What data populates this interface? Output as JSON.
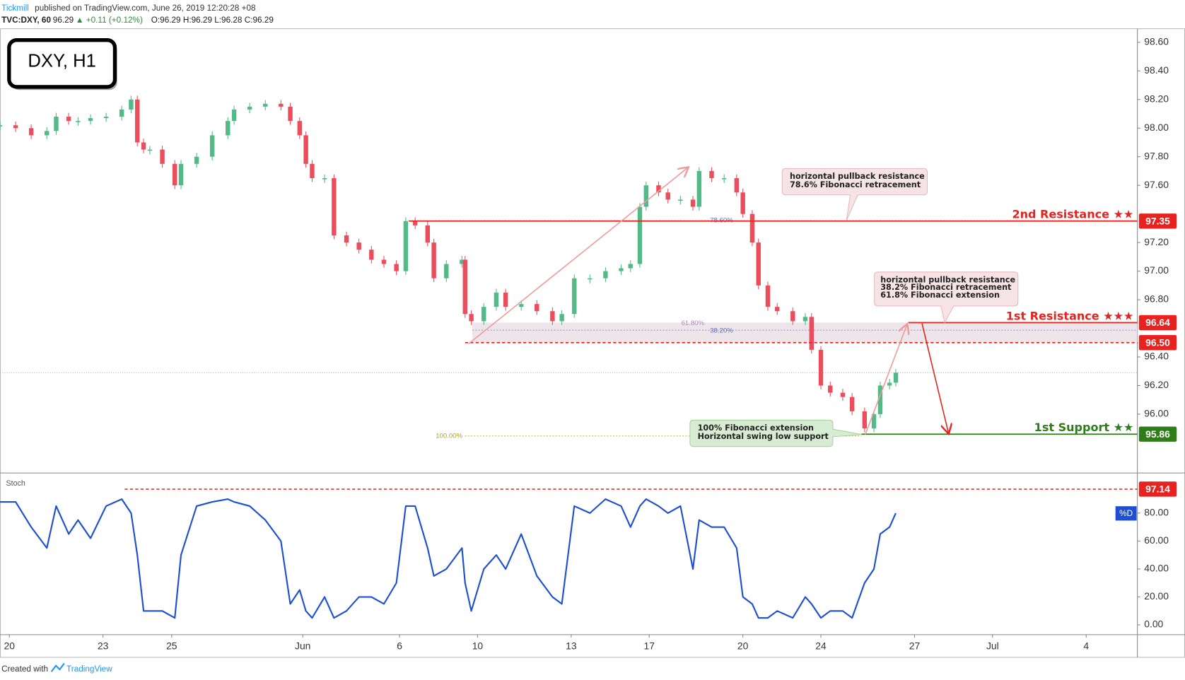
{
  "chart_data": {
    "type": "candlestick",
    "title": "DXY, H1",
    "header": {
      "publisher": "Tickmill",
      "published": "published on TradingView.com, June 26, 2019 12:20:28 +08",
      "symbol": "TVC:DXY, 60",
      "last": 96.29,
      "change": "▲ +0.11 (+0.12%)",
      "ohlc": "O:96.29 H:96.29 L:96.28 C:96.29"
    },
    "x": [
      0,
      0.5,
      1,
      1.5,
      1.8,
      2.2,
      2.5,
      2.9,
      3.4,
      3.9,
      4.2,
      4.4,
      4.6,
      4.8,
      5.2,
      5.6,
      5.8,
      6.3,
      6.8,
      7.3,
      7.5,
      8.0,
      8.5,
      9.0,
      9.3,
      9.6,
      9.8,
      10.0,
      10.4,
      10.7,
      11.1,
      11.5,
      11.9,
      12.3,
      12.7,
      13.0,
      13.3,
      13.7,
      13.9,
      14.3,
      14.8,
      14.9,
      15.1,
      15.5,
      15.9,
      16.2,
      16.7,
      17.2,
      17.7,
      18.0,
      18.4,
      18.9,
      19.4,
      19.9,
      20.2,
      20.5,
      20.7,
      21.1,
      21.4,
      21.8,
      22.2,
      22.4,
      22.8,
      23.2,
      23.6,
      23.8,
      24.1,
      24.3,
      24.6,
      24.9,
      25.4,
      25.8,
      26.0,
      26.3,
      26.6,
      27.0,
      27.3,
      27.7,
      28.0,
      28.2,
      28.5,
      28.7
    ],
    "values": [
      98.02,
      98.0,
      97.95,
      97.98,
      98.08,
      98.05,
      98.05,
      98.07,
      98.08,
      98.13,
      98.2,
      97.9,
      97.85,
      97.85,
      97.75,
      97.6,
      97.75,
      97.8,
      97.95,
      98.05,
      98.13,
      98.15,
      98.17,
      98.15,
      98.05,
      97.95,
      97.75,
      97.65,
      97.65,
      97.25,
      97.2,
      97.15,
      97.08,
      97.05,
      97.0,
      97.35,
      97.32,
      97.2,
      96.95,
      97.05,
      97.08,
      96.7,
      96.65,
      96.75,
      96.85,
      96.75,
      96.77,
      96.72,
      96.65,
      96.7,
      96.95,
      96.95,
      97.0,
      97.02,
      97.05,
      97.45,
      97.6,
      97.55,
      97.5,
      97.5,
      97.45,
      97.7,
      97.65,
      97.65,
      97.55,
      97.4,
      97.2,
      96.9,
      96.75,
      96.72,
      96.65,
      96.68,
      96.45,
      96.2,
      96.15,
      96.12,
      96.02,
      95.9,
      96.0,
      96.2,
      96.22,
      96.29
    ],
    "up_color": "#53b987",
    "down_color": "#eb4d5c",
    "xlim": [
      0,
      36.44
    ],
    "xticks": [
      {
        "value": 0.3,
        "label": "20"
      },
      {
        "value": 3.3,
        "label": "23"
      },
      {
        "value": 5.5,
        "label": "25"
      },
      {
        "value": 9.7,
        "label": "Jun"
      },
      {
        "value": 12.8,
        "label": "6"
      },
      {
        "value": 15.3,
        "label": "10"
      },
      {
        "value": 18.3,
        "label": "13"
      },
      {
        "value": 20.8,
        "label": "17"
      },
      {
        "value": 23.8,
        "label": "20"
      },
      {
        "value": 26.3,
        "label": "24"
      },
      {
        "value": 29.3,
        "label": "27"
      },
      {
        "value": 31.8,
        "label": "Jul"
      },
      {
        "value": 34.8,
        "label": "4"
      }
    ],
    "ylim": [
      95.594,
      98.695
    ],
    "yticks": [
      {
        "value": 98.6,
        "label": "98.60"
      },
      {
        "value": 98.4,
        "label": "98.40"
      },
      {
        "value": 98.2,
        "label": "98.20"
      },
      {
        "value": 98.0,
        "label": "98.00"
      },
      {
        "value": 97.8,
        "label": "97.80"
      },
      {
        "value": 97.6,
        "label": "97.60"
      },
      {
        "value": 97.2,
        "label": "97.20"
      },
      {
        "value": 97.0,
        "label": "97.00"
      },
      {
        "value": 96.8,
        "label": "96.80"
      },
      {
        "value": 96.4,
        "label": "96.40"
      },
      {
        "value": 96.2,
        "label": "96.20"
      },
      {
        "value": 96.0,
        "label": "96.00"
      }
    ],
    "levels": [
      {
        "name": "2nd Resistance ★★",
        "price": 97.35,
        "start": 13.1,
        "color": "#e8221f",
        "dashed": false
      },
      {
        "name": "1st Resistance ★★★",
        "price": 96.64,
        "start": 29.1,
        "color": "#e8221f",
        "dashed": false
      },
      {
        "price": 96.5,
        "label": "96.50",
        "start": 14.9,
        "color": "#e8221f",
        "dashed": true
      },
      {
        "name": "1st Support ★★",
        "price": 95.86,
        "start": 27.6,
        "color": "#2f7d18",
        "dashed": false
      }
    ],
    "fib_levels": [
      "78.60%",
      "61.80%",
      "38.20%",
      "100.00%"
    ],
    "callouts": [
      {
        "lines": [
          "horizontal pullback resistance",
          "78.6% Fibonacci retracement"
        ]
      },
      {
        "lines": [
          "horizontal pullback resistance",
          "38.2% Fibonacci retracement",
          "61.8% Fibonacci extension"
        ]
      },
      {
        "lines": [
          "100% Fibonacci extension",
          "Horizontal swing low support"
        ]
      }
    ],
    "stoch": {
      "name": "Stoch",
      "tag": "%D",
      "color": "#1f4fd1",
      "values": [
        88,
        88,
        70,
        55,
        85,
        65,
        75,
        62,
        85,
        90,
        80,
        50,
        10,
        10,
        10,
        5,
        50,
        85,
        88,
        90,
        88,
        85,
        75,
        60,
        15,
        25,
        10,
        5,
        20,
        5,
        10,
        20,
        20,
        15,
        30,
        85,
        85,
        55,
        35,
        40,
        55,
        30,
        10,
        40,
        50,
        40,
        65,
        35,
        20,
        15,
        85,
        80,
        90,
        85,
        70,
        85,
        90,
        85,
        80,
        85,
        40,
        75,
        70,
        70,
        55,
        20,
        15,
        5,
        5,
        10,
        5,
        20,
        15,
        5,
        10,
        10,
        5,
        30,
        40,
        65,
        70,
        80
      ],
      "ylim": [
        -7,
        107.6
      ],
      "yticks": [
        {
          "value": 80,
          "label": "80.00"
        },
        {
          "value": 60,
          "label": "60.00"
        },
        {
          "value": 40,
          "label": "40.00"
        },
        {
          "value": 20,
          "label": "20.00"
        },
        {
          "value": 0,
          "label": "0.00"
        }
      ],
      "level": 97.14
    },
    "footer": "Created with",
    "brand": "TradingView"
  }
}
